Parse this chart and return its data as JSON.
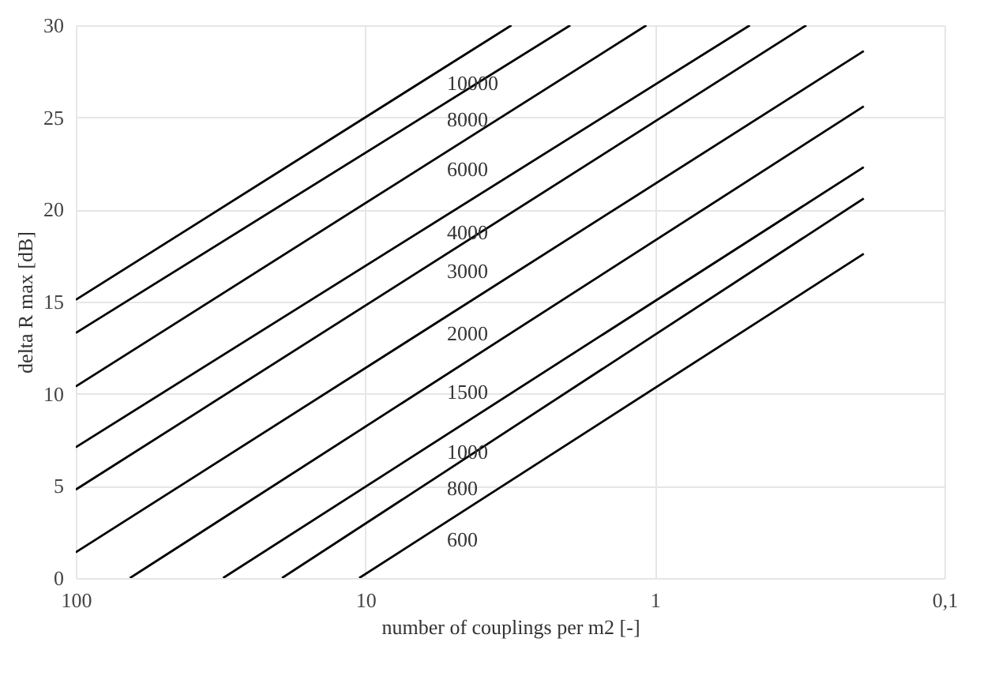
{
  "chart_data": {
    "type": "line",
    "xlabel": "number of couplings per m2 [-]",
    "ylabel": "delta R max [dB]",
    "log": "x",
    "xlim": [
      100,
      0.1
    ],
    "xticks": [
      100,
      10,
      1,
      {
        "value": 0.1,
        "label": "0,1"
      }
    ],
    "ylim": [
      0,
      30
    ],
    "yticks": [
      0,
      5,
      10,
      15,
      20,
      25,
      30
    ],
    "grid": true,
    "legend": false,
    "marker": "none",
    "line_style": "solid",
    "series": [
      {
        "name": "10000",
        "color": "#000000",
        "x": [
          100,
          3.13
        ],
        "values": [
          15.1,
          30
        ]
      },
      {
        "name": "8000",
        "color": "#000000",
        "x": [
          100,
          1.96
        ],
        "values": [
          13.3,
          30
        ]
      },
      {
        "name": "6000",
        "color": "#000000",
        "x": [
          100,
          1.07
        ],
        "values": [
          10.4,
          30
        ]
      },
      {
        "name": "4000",
        "color": "#000000",
        "x": [
          100,
          0.47
        ],
        "values": [
          7.1,
          30
        ]
      },
      {
        "name": "3000",
        "color": "#000000",
        "x": [
          100,
          0.3
        ],
        "values": [
          4.8,
          30
        ]
      },
      {
        "name": "2000",
        "color": "#000000",
        "x": [
          100,
          0.19
        ],
        "values": [
          1.4,
          28.6
        ]
      },
      {
        "name": "1500",
        "color": "#000000",
        "x": [
          65,
          0.19
        ],
        "values": [
          0,
          25.6
        ]
      },
      {
        "name": "1000",
        "color": "#000000",
        "x": [
          31,
          0.19
        ],
        "values": [
          0,
          22.3
        ]
      },
      {
        "name": "800",
        "color": "#000000",
        "x": [
          19.4,
          0.19
        ],
        "values": [
          0,
          20.6
        ]
      },
      {
        "name": "600",
        "color": "#000000",
        "x": [
          10.5,
          0.19
        ],
        "values": [
          0,
          17.6
        ]
      }
    ]
  }
}
